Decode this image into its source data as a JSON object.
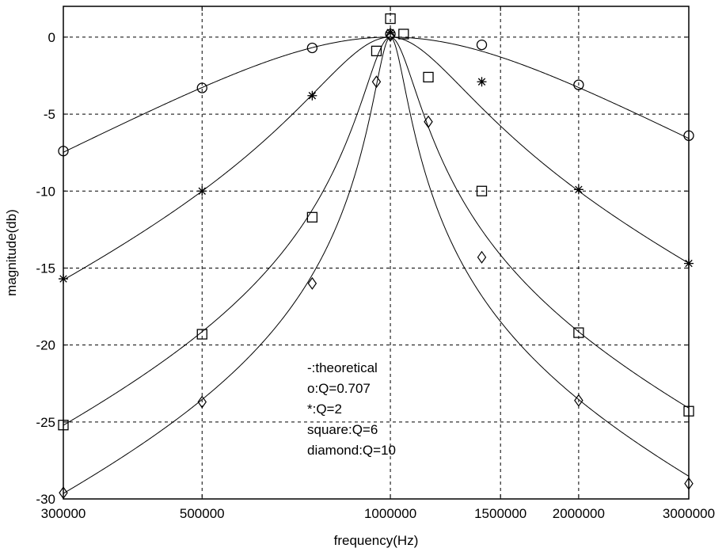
{
  "chart_data": {
    "type": "line",
    "title": "",
    "xlabel": "frequency(Hz)",
    "ylabel": "magnitude(db)",
    "x_scale": "log",
    "xlim": [
      300000,
      3000000
    ],
    "ylim": [
      -30,
      2
    ],
    "grid": true,
    "x_ticks": [
      300000,
      500000,
      1000000,
      1500000,
      2000000,
      3000000
    ],
    "x_tick_labels": [
      "300000",
      "500000",
      "1000000",
      "1500000",
      "2000000",
      "3000000"
    ],
    "y_ticks": [
      0,
      -5,
      -10,
      -15,
      -20,
      -25,
      -30
    ],
    "y_tick_labels": [
      "0",
      "-5",
      "-10",
      "-15",
      "-20",
      "-25",
      "-30"
    ],
    "center_frequency": 1000000,
    "series": [
      {
        "q": 0.707,
        "marker": "circle",
        "x": [
          300000,
          500000,
          750000,
          1000000,
          1400000,
          2000000,
          3000000
        ],
        "y": [
          -7.4,
          -3.3,
          -0.7,
          0.2,
          -0.5,
          -3.1,
          -6.4
        ]
      },
      {
        "q": 2,
        "marker": "star",
        "x": [
          300000,
          500000,
          750000,
          1000000,
          1400000,
          2000000,
          3000000
        ],
        "y": [
          -15.7,
          -10.0,
          -3.8,
          0.3,
          -2.9,
          -9.9,
          -14.7
        ]
      },
      {
        "q": 6,
        "marker": "square",
        "x": [
          300000,
          500000,
          750000,
          950000,
          1000000,
          1050000,
          1150000,
          1400000,
          2000000,
          3000000
        ],
        "y": [
          -25.2,
          -19.3,
          -11.7,
          -0.9,
          1.2,
          0.2,
          -2.6,
          -10.0,
          -19.2,
          -24.3
        ]
      },
      {
        "q": 10,
        "marker": "diamond",
        "x": [
          300000,
          500000,
          750000,
          950000,
          1000000,
          1150000,
          1400000,
          2000000,
          3000000
        ],
        "y": [
          -29.6,
          -23.7,
          -16.0,
          -2.9,
          0.1,
          -5.5,
          -14.3,
          -23.6,
          -29.0
        ]
      }
    ],
    "annotations": [
      "-:theoretical",
      "o:Q=0.707",
      "*:Q=2",
      "square:Q=6",
      "diamond:Q=10"
    ],
    "colors": {
      "line": "#000000",
      "grid": "#000000",
      "background": "#ffffff"
    }
  }
}
